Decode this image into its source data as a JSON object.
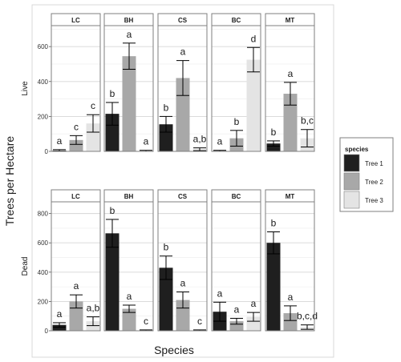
{
  "chart_data": {
    "type": "bar",
    "xlabel": "Species",
    "ylabel": "Trees per Hectare",
    "sites": [
      "LC",
      "BH",
      "CS",
      "BC",
      "MT"
    ],
    "legend": {
      "title": "species",
      "position": "right",
      "entries": [
        "Tree 1",
        "Tree 2",
        "Tree 3"
      ],
      "colors": [
        "#1f1f1f",
        "#a8a8a8",
        "#e4e4e4"
      ]
    },
    "grid": true,
    "rows": [
      {
        "label": "Live",
        "ylim": [
          0,
          720
        ],
        "ticks": [
          0,
          200,
          400,
          600
        ],
        "panels": {
          "LC": {
            "values": [
              5,
              65,
              160
            ],
            "errors": [
              5,
              25,
              50
            ],
            "letters": [
              "a",
              "c",
              "c"
            ]
          },
          "BH": {
            "values": [
              215,
              545,
              3
            ],
            "errors": [
              65,
              75,
              3
            ],
            "letters": [
              "b",
              "a",
              "a"
            ]
          },
          "CS": {
            "values": [
              155,
              420,
              12
            ],
            "errors": [
              45,
              100,
              8
            ],
            "letters": [
              "b",
              "a",
              "a,b"
            ]
          },
          "BC": {
            "values": [
              3,
              75,
              525
            ],
            "errors": [
              3,
              45,
              70
            ],
            "letters": [
              "a",
              "b",
              "d"
            ]
          },
          "MT": {
            "values": [
              45,
              330,
              75
            ],
            "errors": [
              15,
              65,
              50
            ],
            "letters": [
              "b",
              "a",
              "b,c"
            ]
          }
        }
      },
      {
        "label": "Dead",
        "ylim": [
          0,
          880
        ],
        "ticks": [
          0,
          200,
          400,
          600,
          800
        ],
        "panels": {
          "LC": {
            "values": [
              40,
              200,
              65
            ],
            "errors": [
              15,
              45,
              30
            ],
            "letters": [
              "a",
              "a",
              "a,b"
            ]
          },
          "BH": {
            "values": [
              665,
              150,
              3
            ],
            "errors": [
              95,
              25,
              3
            ],
            "letters": [
              "b",
              "a",
              "c"
            ]
          },
          "CS": {
            "values": [
              430,
              210,
              3
            ],
            "errors": [
              80,
              55,
              3
            ],
            "letters": [
              "b",
              "a",
              "c"
            ]
          },
          "BC": {
            "values": [
              130,
              65,
              95
            ],
            "errors": [
              65,
              20,
              30
            ],
            "letters": [
              "a",
              "a",
              "a"
            ]
          },
          "MT": {
            "values": [
              600,
              120,
              25
            ],
            "errors": [
              75,
              50,
              15
            ],
            "letters": [
              "b",
              "a",
              "b,c,d"
            ]
          }
        }
      }
    ]
  }
}
